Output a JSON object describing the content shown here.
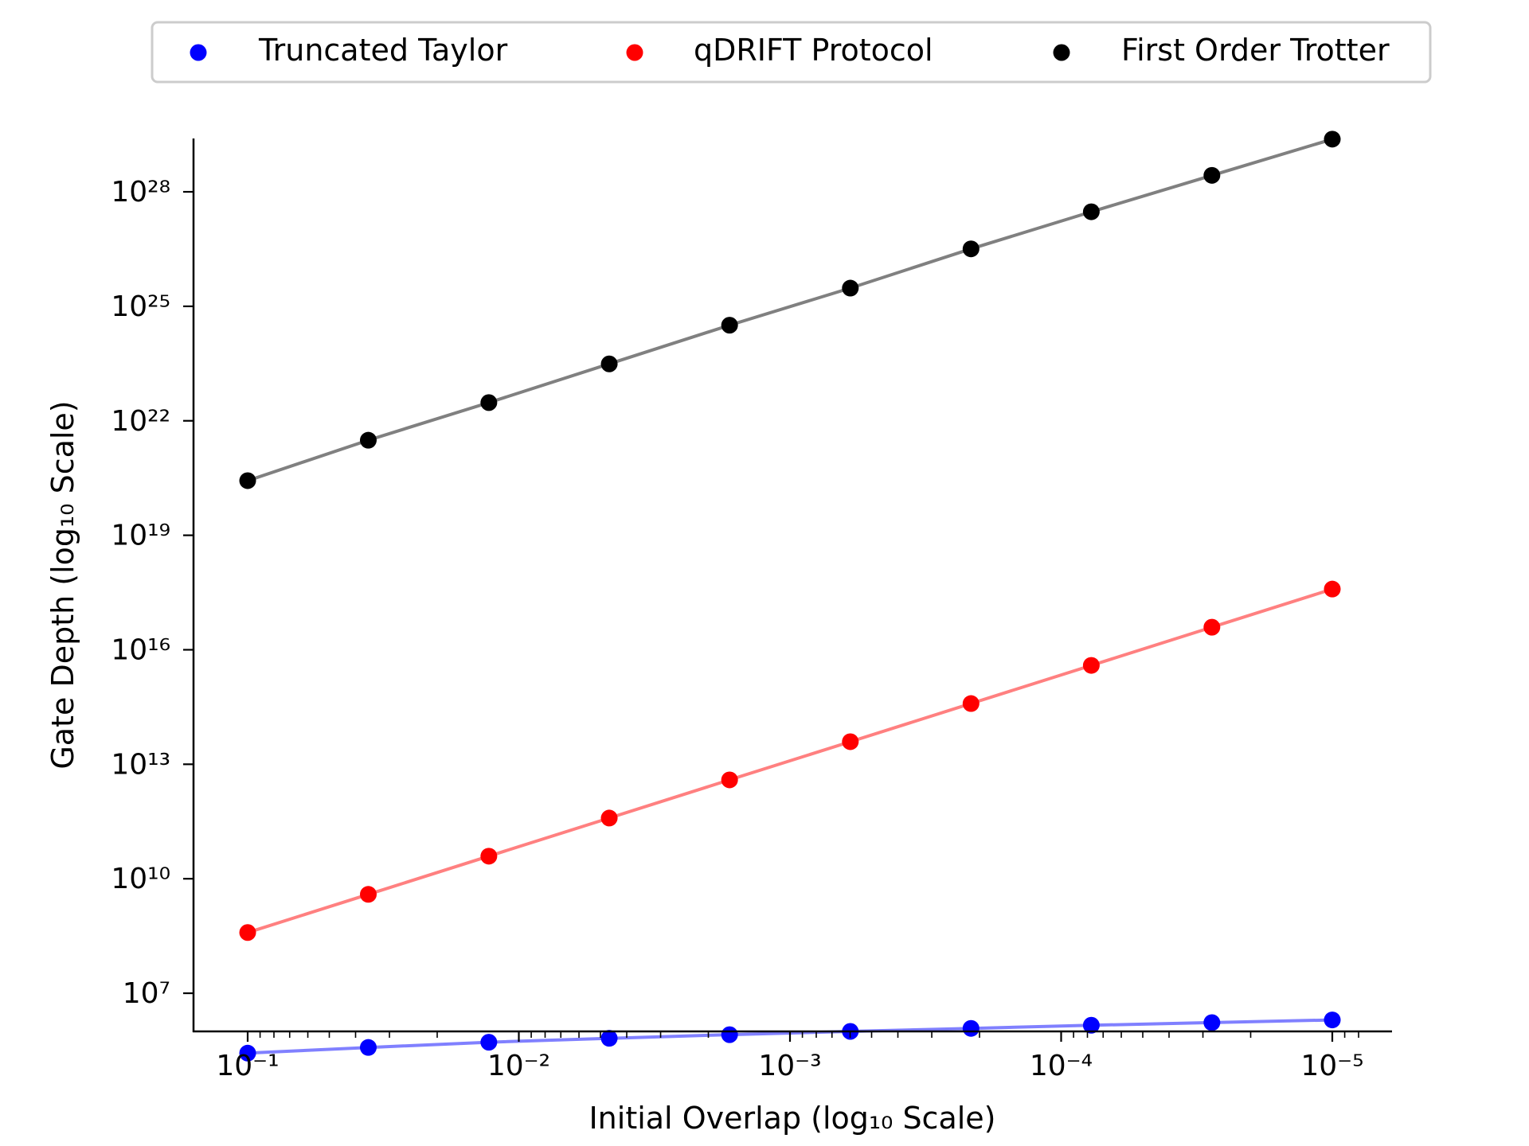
{
  "chart_data": {
    "type": "scatter",
    "title": "",
    "xlabel": "Initial Overlap (log₁₀ Scale)",
    "ylabel": "Gate Depth (log₁₀ Scale)",
    "x_scale": "log",
    "y_scale": "log",
    "x_reversed": true,
    "xlim": [
      0.15,
      7.5e-06
    ],
    "ylim": [
      1000000,
      2.5e+29
    ],
    "x_ticks": [
      {
        "value": 0.1,
        "label": "10⁻¹"
      },
      {
        "value": 0.01,
        "label": "10⁻²"
      },
      {
        "value": 0.001,
        "label": "10⁻³"
      },
      {
        "value": 0.0001,
        "label": "10⁻⁴"
      },
      {
        "value": 1e-05,
        "label": "10⁻⁵"
      }
    ],
    "y_ticks": [
      {
        "value": 10000000.0,
        "label": "10⁷"
      },
      {
        "value": 10000000000.0,
        "label": "10¹⁰"
      },
      {
        "value": 10000000000000.0,
        "label": "10¹³"
      },
      {
        "value": 1e+16,
        "label": "10¹⁶"
      },
      {
        "value": 1e+19,
        "label": "10¹⁹"
      },
      {
        "value": 1e+22,
        "label": "10²²"
      },
      {
        "value": 1e+25,
        "label": "10²⁵"
      },
      {
        "value": 1e+28,
        "label": "10²⁸"
      }
    ],
    "legend_position": "top-center, above plot",
    "grid": false,
    "x": [
      0.1,
      0.0359,
      0.0129,
      0.00464,
      0.00167,
      0.000599,
      0.000215,
      7.74e-05,
      2.78e-05,
      1e-05
    ],
    "series": [
      {
        "name": "Truncated Taylor",
        "marker_color": "#0000ff",
        "line_color": "#8080ff",
        "values": [
          270000.0,
          380000.0,
          520000.0,
          660000.0,
          820000.0,
          1000000.0,
          1200000.0,
          1450000.0,
          1700000.0,
          2000000.0
        ]
      },
      {
        "name": "qDRIFT Protocol",
        "marker_color": "#ff0000",
        "line_color": "#ff8080",
        "values": [
          390000000.0,
          3900000000.0,
          39000000000.0,
          390000000000.0,
          3900000000000.0,
          39000000000000.0,
          390000000000000.0,
          3900000000000000.0,
          3.9e+16,
          3.9e+17
        ]
      },
      {
        "name": "First Order Trotter",
        "marker_color": "#000000",
        "line_color": "#808080",
        "values": [
          2.7e+20,
          3.1e+21,
          3e+22,
          3.1e+23,
          3.2e+24,
          3e+25,
          3.2e+26,
          3e+27,
          2.7e+28,
          2.4e+29
        ]
      }
    ]
  }
}
